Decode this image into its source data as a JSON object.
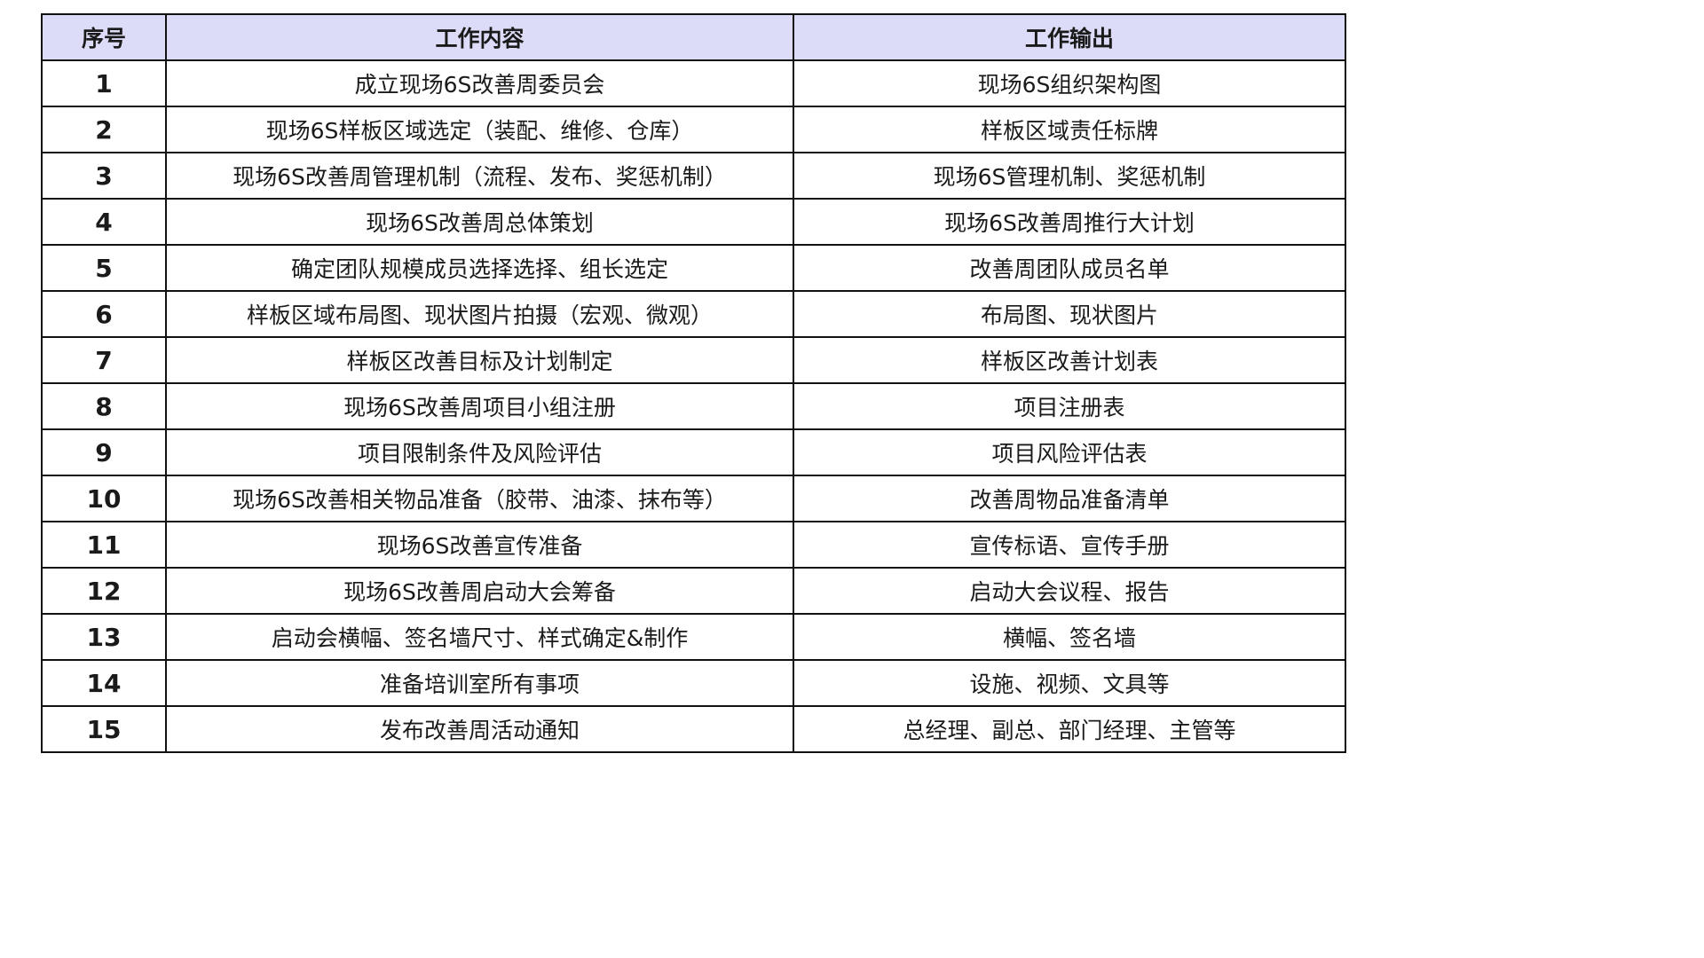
{
  "table": {
    "headers": [
      "序号",
      "工作内容",
      "工作输出"
    ],
    "header_bg": "#dcdcf8",
    "rows": [
      {
        "no": "1",
        "content": "成立现场6S改善周委员会",
        "output": "现场6S组织架构图"
      },
      {
        "no": "2",
        "content": "现场6S样板区域选定（装配、维修、仓库）",
        "output": "样板区域责任标牌"
      },
      {
        "no": "3",
        "content": "现场6S改善周管理机制（流程、发布、奖惩机制）",
        "output": "现场6S管理机制、奖惩机制"
      },
      {
        "no": "4",
        "content": "现场6S改善周总体策划",
        "output": "现场6S改善周推行大计划"
      },
      {
        "no": "5",
        "content": "确定团队规模成员选择选择、组长选定",
        "output": "改善周团队成员名单"
      },
      {
        "no": "6",
        "content": "样板区域布局图、现状图片拍摄（宏观、微观）",
        "output": "布局图、现状图片"
      },
      {
        "no": "7",
        "content": "样板区改善目标及计划制定",
        "output": "样板区改善计划表"
      },
      {
        "no": "8",
        "content": "现场6S改善周项目小组注册",
        "output": "项目注册表"
      },
      {
        "no": "9",
        "content": "项目限制条件及风险评估",
        "output": "项目风险评估表"
      },
      {
        "no": "10",
        "content": "现场6S改善相关物品准备（胶带、油漆、抹布等）",
        "output": "改善周物品准备清单"
      },
      {
        "no": "11",
        "content": "现场6S改善宣传准备",
        "output": "宣传标语、宣传手册"
      },
      {
        "no": "12",
        "content": "现场6S改善周启动大会筹备",
        "output": "启动大会议程、报告"
      },
      {
        "no": "13",
        "content": "启动会横幅、签名墙尺寸、样式确定&制作",
        "output": "横幅、签名墙"
      },
      {
        "no": "14",
        "content": "准备培训室所有事项",
        "output": "设施、视频、文具等"
      },
      {
        "no": "15",
        "content": "发布改善周活动通知",
        "output": "总经理、副总、部门经理、主管等"
      }
    ]
  }
}
